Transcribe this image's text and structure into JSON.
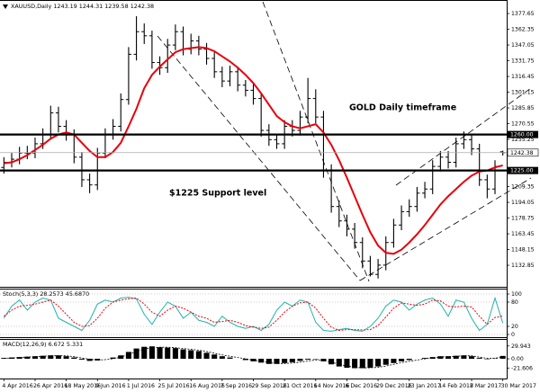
{
  "chart_data": [
    {
      "type": "ohlc",
      "title": "XAUUSD,Daily 1243.19 1244.31 1239.58 1242.38",
      "categories": [
        "4 Apr 2016",
        null,
        null,
        null,
        "26 Apr 2016",
        null,
        null,
        null,
        "18 May 2016",
        null,
        null,
        null,
        "9 Jun 2016",
        null,
        null,
        null,
        "1 Jul 2016",
        null,
        null,
        null,
        "25 Jul 2016",
        null,
        null,
        null,
        "16 Aug 2016",
        null,
        null,
        null,
        "7 Sep 2016",
        null,
        null,
        null,
        "29 Sep 2016",
        null,
        null,
        null,
        "21 Oct 2016",
        null,
        null,
        null,
        "14 Nov 2016",
        null,
        null,
        null,
        "6 Dec 2016",
        null,
        null,
        null,
        "29 Dec 2016",
        null,
        null,
        null,
        "23 Jan 2017",
        null,
        null,
        null,
        "14 Feb 2017",
        null,
        null,
        null,
        "8 Mar 2017",
        null,
        null,
        null,
        "30 Mar 2017"
      ],
      "open": [
        1228,
        1233,
        1236,
        1242,
        1242,
        1251,
        1260,
        1281,
        1268,
        1260,
        1238,
        1216,
        1211,
        1242,
        1260,
        1268,
        1294,
        1338,
        1360,
        1356,
        1330,
        1325,
        1347,
        1360,
        1343,
        1351,
        1343,
        1334,
        1321,
        1312,
        1321,
        1308,
        1303,
        1295,
        1264,
        1255,
        1251,
        1268,
        1264,
        1277,
        1295,
        1277,
        1225,
        1190,
        1176,
        1168,
        1155,
        1137,
        1124,
        1133,
        1155,
        1172,
        1185,
        1190,
        1203,
        1207,
        1229,
        1238,
        1233,
        1251,
        1255,
        1246,
        1216,
        1207,
        1243.19
      ],
      "high": [
        1238,
        1242,
        1248,
        1249,
        1257,
        1266,
        1288,
        1287,
        1274,
        1265,
        1243,
        1222,
        1247,
        1266,
        1275,
        1300,
        1345,
        1375,
        1368,
        1361,
        1336,
        1353,
        1367,
        1365,
        1358,
        1356,
        1349,
        1340,
        1326,
        1327,
        1326,
        1313,
        1309,
        1300,
        1270,
        1261,
        1274,
        1274,
        1283,
        1315,
        1304,
        1283,
        1231,
        1196,
        1182,
        1174,
        1160,
        1142,
        1139,
        1161,
        1178,
        1191,
        1197,
        1209,
        1214,
        1235,
        1244,
        1244,
        1257,
        1263,
        1261,
        1251,
        1221,
        1235,
        1244.31
      ],
      "low": [
        1222,
        1228,
        1231,
        1236,
        1237,
        1246,
        1255,
        1262,
        1254,
        1232,
        1209,
        1203,
        1206,
        1237,
        1255,
        1263,
        1289,
        1332,
        1348,
        1324,
        1318,
        1320,
        1342,
        1337,
        1338,
        1337,
        1328,
        1315,
        1306,
        1307,
        1302,
        1297,
        1289,
        1258,
        1249,
        1246,
        1246,
        1258,
        1259,
        1271,
        1271,
        1218,
        1184,
        1170,
        1161,
        1149,
        1130,
        1122,
        1120,
        1128,
        1150,
        1167,
        1180,
        1185,
        1198,
        1202,
        1224,
        1227,
        1228,
        1246,
        1240,
        1210,
        1198,
        1202,
        1239.58
      ],
      "close": [
        1233,
        1236,
        1242,
        1242,
        1251,
        1260,
        1281,
        1268,
        1260,
        1238,
        1216,
        1211,
        1242,
        1260,
        1268,
        1294,
        1338,
        1360,
        1356,
        1330,
        1325,
        1347,
        1360,
        1343,
        1351,
        1343,
        1334,
        1321,
        1312,
        1321,
        1308,
        1303,
        1295,
        1264,
        1255,
        1251,
        1268,
        1264,
        1277,
        1295,
        1277,
        1225,
        1190,
        1176,
        1168,
        1155,
        1137,
        1124,
        1133,
        1155,
        1172,
        1185,
        1190,
        1203,
        1207,
        1229,
        1238,
        1233,
        1251,
        1255,
        1246,
        1216,
        1207,
        1229,
        1242.38
      ],
      "color": "#000000",
      "moving_average": {
        "color": "#e8000b",
        "values": [
          1232,
          1233,
          1236,
          1240,
          1245,
          1250,
          1256,
          1260,
          1262,
          1260,
          1252,
          1244,
          1238,
          1238,
          1243,
          1252,
          1268,
          1285,
          1305,
          1318,
          1326,
          1333,
          1340,
          1343,
          1344,
          1345,
          1344,
          1341,
          1336,
          1331,
          1325,
          1318,
          1310,
          1300,
          1289,
          1278,
          1272,
          1268,
          1266,
          1268,
          1270,
          1262,
          1250,
          1235,
          1218,
          1200,
          1182,
          1165,
          1152,
          1145,
          1144,
          1148,
          1155,
          1163,
          1172,
          1182,
          1192,
          1200,
          1207,
          1214,
          1220,
          1224,
          1225,
          1228,
          1230
        ]
      },
      "levels": [
        {
          "value": 1260,
          "label": "1260.00"
        },
        {
          "value": 1225,
          "label": "1225.00"
        }
      ],
      "last_price": 1242.38,
      "annotations": [
        "GOLD Daily timeframe",
        "$1225 Support level"
      ],
      "ylim": [
        1112.8,
        1387.3
      ],
      "yticks": [
        1377.65,
        1362.35,
        1347.05,
        1331.75,
        1316.45,
        1301.15,
        1285.85,
        1270.55,
        1255.25,
        1209.35,
        1194.05,
        1178.75,
        1163.45,
        1148.15,
        1132.85
      ],
      "grid": false
    },
    {
      "type": "line",
      "title": "Stoch(5,3,3) 28.2573 45.6870",
      "series": [
        {
          "color": "#20b2aa",
          "dashed": false,
          "values": [
            40,
            70,
            85,
            60,
            80,
            90,
            85,
            40,
            30,
            20,
            10,
            35,
            75,
            85,
            80,
            90,
            92,
            88,
            50,
            25,
            55,
            80,
            70,
            40,
            55,
            35,
            30,
            20,
            45,
            30,
            20,
            15,
            20,
            10,
            25,
            60,
            80,
            70,
            85,
            80,
            30,
            10,
            8,
            12,
            15,
            10,
            8,
            20,
            40,
            70,
            85,
            80,
            60,
            75,
            85,
            90,
            75,
            45,
            85,
            80,
            40,
            10,
            25,
            90,
            28.2573
          ]
        },
        {
          "color": "#e8000b",
          "dashed": true,
          "values": [
            45,
            60,
            70,
            72,
            75,
            80,
            85,
            70,
            50,
            30,
            20,
            22,
            40,
            65,
            80,
            85,
            88,
            90,
            75,
            55,
            45,
            60,
            70,
            65,
            55,
            45,
            40,
            30,
            32,
            35,
            30,
            22,
            18,
            15,
            18,
            35,
            55,
            70,
            78,
            80,
            65,
            40,
            18,
            10,
            12,
            12,
            11,
            12,
            22,
            43,
            65,
            78,
            75,
            72,
            75,
            85,
            83,
            70,
            68,
            70,
            68,
            45,
            25,
            42,
            45.687
          ]
        }
      ],
      "ylim": [
        0,
        100
      ],
      "yticks": [
        0,
        20,
        80,
        100
      ],
      "grid": true
    },
    {
      "type": "macd",
      "title": "MACD(12,26,9) 6.672 5.331",
      "histogram": {
        "color": "#000000",
        "values": [
          2,
          3,
          4,
          5,
          6,
          7,
          8,
          8,
          6,
          3,
          -2,
          -5,
          -4,
          0,
          3,
          8,
          16,
          24,
          28,
          29,
          27,
          26,
          25,
          22,
          20,
          18,
          14,
          10,
          6,
          3,
          0,
          -3,
          -6,
          -9,
          -12,
          -12,
          -10,
          -8,
          -5,
          -2,
          -1,
          -6,
          -13,
          -18,
          -21,
          -22,
          -22,
          -21,
          -18,
          -14,
          -10,
          -6,
          -3,
          0,
          2,
          4,
          6,
          6,
          7,
          8,
          6,
          2,
          -1,
          1,
          6.672
        ]
      },
      "signal": {
        "color": "#000000",
        "values": [
          1,
          2,
          3,
          4,
          5,
          6,
          7,
          7,
          7,
          5,
          2,
          -1,
          -3,
          -2,
          0,
          4,
          10,
          17,
          23,
          26,
          27,
          27,
          26,
          24,
          22,
          20,
          17,
          13,
          9,
          6,
          3,
          0,
          -3,
          -6,
          -9,
          -11,
          -11,
          -10,
          -8,
          -5,
          -3,
          -4,
          -8,
          -13,
          -17,
          -20,
          -21,
          -21,
          -20,
          -17,
          -13,
          -9,
          -6,
          -3,
          0,
          2,
          4,
          5,
          6,
          7,
          7,
          4,
          1,
          1,
          5.331
        ]
      },
      "ylim": [
        -44,
        40
      ],
      "yticks": [
        29.943,
        {
          "value": 0,
          "label": "0.00"
        },
        -21.606
      ],
      "grid": false
    }
  ]
}
